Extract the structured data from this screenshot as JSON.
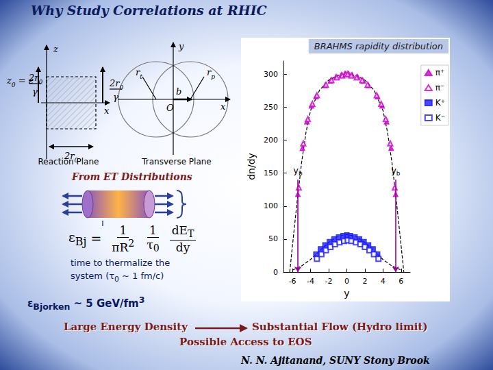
{
  "title": "Why Study Correlations at RHIC",
  "diagram": {
    "labels": [
      [
        "z"
      ],
      [
        "z",
        {
          "sub": "0"
        },
        " = ε"
      ],
      [
        "2r",
        {
          "sub": "0"
        }
      ],
      [
        "γ"
      ],
      [
        "2r",
        {
          "sub": "0"
        }
      ],
      [
        "γ"
      ],
      [
        "x"
      ],
      [
        "2r",
        {
          "sub": "0"
        }
      ],
      [
        "y"
      ],
      [
        "r",
        {
          "sub": "t"
        }
      ],
      [
        "b"
      ],
      [
        "r",
        {
          "sub": "p"
        }
      ],
      [
        "O"
      ],
      [
        "x"
      ]
    ],
    "captions": [
      "Reaction Plane",
      "Transverse Plane"
    ]
  },
  "et_heading": "From ET Distributions",
  "formula": {
    "lhs": [
      "ε",
      {
        "sub": "Bj"
      }
    ],
    "relation": "=",
    "fractions": [
      {
        "num": [
          "1"
        ],
        "den": [
          "πR",
          {
            "sup": "2"
          }
        ]
      },
      {
        "num": [
          "1"
        ],
        "den": [
          "τ",
          {
            "sub": "0"
          }
        ]
      },
      {
        "num": [
          "dE",
          {
            "sub": "T"
          }
        ],
        "den": [
          "dy"
        ]
      }
    ]
  },
  "note_lines": [
    [
      "time to thermalize the"
    ],
    [
      "system (τ",
      {
        "sub": "0"
      },
      " ~ 1 fm/c)"
    ]
  ],
  "energy_density": [
    "ε",
    {
      "sub": "Bjorken"
    },
    " ~ 5 GeV/fm",
    {
      "sup": "3"
    }
  ],
  "flow": {
    "from": "Large Energy Density",
    "to": "Substantial Flow (Hydro limit)",
    "next": "Possible Access to EOS"
  },
  "author": "N. N. Ajitanand, SUNY Stony Brook",
  "chart_data": {
    "type": "scatter",
    "title": "BRAHMS rapidity distribution",
    "x_label": "y",
    "y_label": "dn/dy",
    "xlim": [
      -7,
      7
    ],
    "xticks": [
      -6,
      -4,
      -2,
      0,
      2,
      4,
      6
    ],
    "ylim": [
      0,
      320
    ],
    "yticks": [
      0,
      50,
      100,
      150,
      200,
      250,
      300
    ],
    "grid": false,
    "legend": "upper right",
    "series": [
      {
        "name": "π⁺",
        "color": "#cc00cc",
        "marker": "triangle",
        "x": [
          -5.4,
          -4.9,
          -4.4,
          -3.9,
          -3.4,
          -2.4,
          -1.8,
          -1.2,
          -0.6,
          -0.2,
          0.2,
          0.6,
          1.2,
          1.8,
          2.4,
          3.4,
          3.9,
          4.4,
          4.9,
          5.4
        ],
        "values": [
          118,
          188,
          228,
          252,
          266,
          283,
          290,
          296,
          299,
          301,
          301,
          299,
          296,
          290,
          283,
          266,
          252,
          228,
          188,
          118
        ]
      },
      {
        "name": "π⁻",
        "color": "#cc00cc",
        "marker": "triangle_open",
        "x": [
          -5.3,
          -4.8,
          -4.3,
          -3.8,
          -3.3,
          -2.3,
          -1.7,
          -1.1,
          -0.5,
          -0.1,
          0.1,
          0.5,
          1.1,
          1.7,
          2.3,
          3.3,
          3.8,
          4.3,
          4.8,
          5.3
        ],
        "values": [
          128,
          195,
          232,
          255,
          268,
          284,
          291,
          295,
          298,
          300,
          300,
          298,
          295,
          291,
          284,
          268,
          255,
          232,
          195,
          128
        ]
      },
      {
        "name": "K⁺",
        "color": "#1a1aff",
        "marker": "square",
        "x": [
          -3.4,
          -2.9,
          -2.4,
          -1.9,
          -1.4,
          -0.9,
          -0.4,
          0,
          0.4,
          0.9,
          1.4,
          1.9,
          2.4,
          2.9,
          3.4
        ],
        "values": [
          27,
          35,
          41,
          46,
          50,
          53,
          55,
          56,
          55,
          53,
          50,
          46,
          41,
          35,
          27
        ]
      },
      {
        "name": "K⁻",
        "color": "#1a1aff",
        "marker": "square_open",
        "x": [
          -3.3,
          -2.8,
          -2.3,
          -1.8,
          -1.3,
          -0.8,
          -0.3,
          0.1,
          0.5,
          1.0,
          1.5,
          2.0,
          2.5,
          3.0,
          3.5
        ],
        "values": [
          20,
          27,
          33,
          38,
          42,
          45,
          47,
          48,
          47,
          45,
          42,
          38,
          33,
          27,
          20
        ]
      },
      {
        "type": "line",
        "line_style": "dashed",
        "color": "#000000",
        "x": [
          -6.3,
          -6,
          -5.5,
          -5,
          -4.5,
          -4,
          -3,
          -2,
          -1,
          0,
          1,
          2,
          3,
          4,
          4.5,
          5,
          5.5,
          6,
          6.3
        ],
        "values": [
          0,
          40,
          105,
          165,
          212,
          245,
          276,
          291,
          298,
          300,
          298,
          291,
          276,
          245,
          212,
          165,
          105,
          40,
          0
        ]
      },
      {
        "type": "line",
        "line_style": "dashed",
        "color": "#000000",
        "x": [
          -6,
          -5,
          -4,
          -3,
          -2,
          -1,
          0,
          1,
          2,
          3,
          4,
          5,
          6
        ],
        "values": [
          3,
          9,
          19,
          32,
          45,
          54,
          57,
          54,
          45,
          32,
          19,
          9,
          3
        ]
      }
    ],
    "annotations": [
      {
        "text": [
          "y",
          {
            "sub": "b"
          }
        ],
        "x": -5.4,
        "y": 140
      },
      {
        "text": [
          "y",
          {
            "sub": "b"
          }
        ],
        "x": 5.4,
        "y": 140
      }
    ]
  }
}
